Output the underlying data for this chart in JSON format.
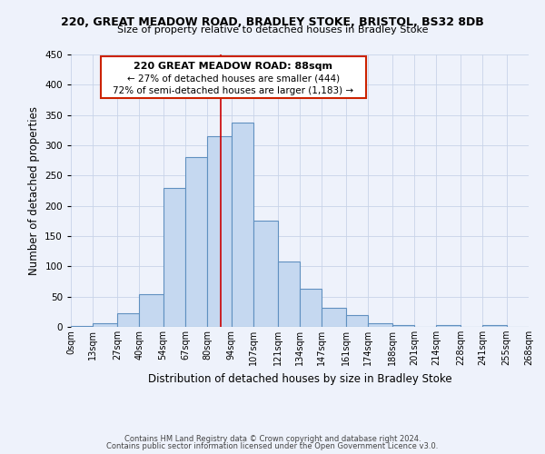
{
  "title_line1": "220, GREAT MEADOW ROAD, BRADLEY STOKE, BRISTOL, BS32 8DB",
  "title_line2": "Size of property relative to detached houses in Bradley Stoke",
  "xlabel": "Distribution of detached houses by size in Bradley Stoke",
  "ylabel": "Number of detached properties",
  "bin_labels": [
    "0sqm",
    "13sqm",
    "27sqm",
    "40sqm",
    "54sqm",
    "67sqm",
    "80sqm",
    "94sqm",
    "107sqm",
    "121sqm",
    "134sqm",
    "147sqm",
    "161sqm",
    "174sqm",
    "188sqm",
    "201sqm",
    "214sqm",
    "228sqm",
    "241sqm",
    "255sqm",
    "268sqm"
  ],
  "bar_values": [
    2,
    6,
    22,
    54,
    230,
    280,
    315,
    338,
    175,
    108,
    63,
    31,
    19,
    6,
    3,
    0,
    3,
    0,
    3,
    0
  ],
  "bar_color": "#c5d8f0",
  "bar_edge_color": "#6090c0",
  "ylim": [
    0,
    450
  ],
  "yticks": [
    0,
    50,
    100,
    150,
    200,
    250,
    300,
    350,
    400,
    450
  ],
  "property_line_x": 88,
  "annotation_title": "220 GREAT MEADOW ROAD: 88sqm",
  "annotation_line1": "← 27% of detached houses are smaller (444)",
  "annotation_line2": "72% of semi-detached houses are larger (1,183) →",
  "footer_line1": "Contains HM Land Registry data © Crown copyright and database right 2024.",
  "footer_line2": "Contains public sector information licensed under the Open Government Licence v3.0.",
  "background_color": "#eef2fb",
  "grid_color": "#c8d4e8"
}
